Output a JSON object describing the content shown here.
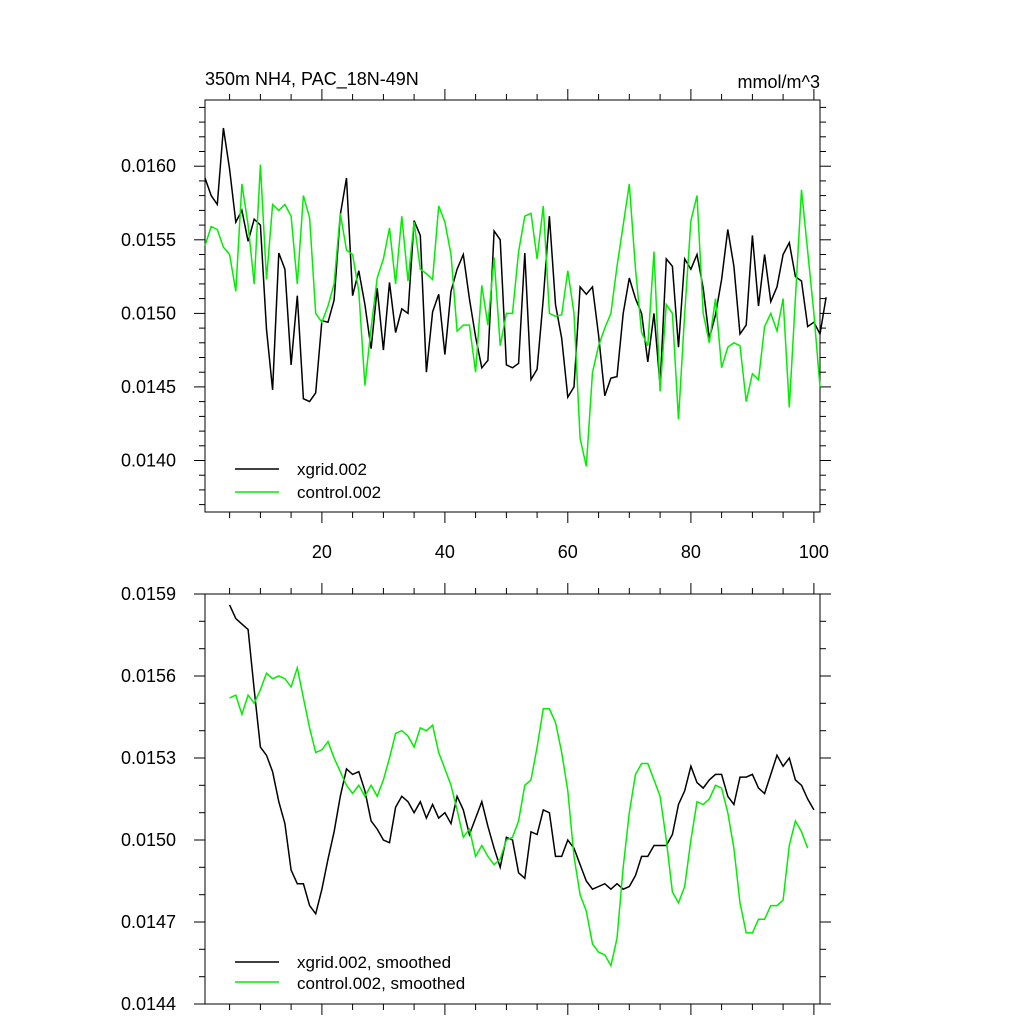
{
  "chart_data": [
    {
      "type": "line",
      "title_left": "350m NH4, PAC_18N-49N",
      "title_right": "mmol/m^3",
      "xlim": [
        1,
        101
      ],
      "ylim": [
        0.01365,
        0.01645
      ],
      "x_ticks": [
        20,
        40,
        60,
        80,
        100
      ],
      "x_tick_labels": [
        "20",
        "40",
        "60",
        "80",
        "100"
      ],
      "y_ticks": [
        0.014,
        0.0145,
        0.015,
        0.0155,
        0.016
      ],
      "y_tick_labels": [
        "0.0140",
        "0.0145",
        "0.0150",
        "0.0155",
        "0.0160"
      ],
      "legend": "bottom-left",
      "series": [
        {
          "name": "xgrid.002",
          "color": "#000000",
          "x_start": 1,
          "values": [
            0.01592,
            0.0158,
            0.01574,
            0.01626,
            0.01598,
            0.01562,
            0.0157,
            0.01549,
            0.01564,
            0.0156,
            0.01489,
            0.01448,
            0.01541,
            0.0153,
            0.01465,
            0.01512,
            0.01442,
            0.0144,
            0.01446,
            0.01495,
            0.01494,
            0.01509,
            0.01567,
            0.01592,
            0.01512,
            0.01529,
            0.01506,
            0.01476,
            0.01517,
            0.01475,
            0.01521,
            0.01487,
            0.01503,
            0.015,
            0.01563,
            0.01553,
            0.0146,
            0.01501,
            0.01513,
            0.01472,
            0.01515,
            0.0153,
            0.0154,
            0.0151,
            0.01484,
            0.01463,
            0.01468,
            0.01556,
            0.0155,
            0.01465,
            0.01463,
            0.01466,
            0.01541,
            0.01455,
            0.01462,
            0.0151,
            0.01566,
            0.01506,
            0.01483,
            0.01443,
            0.0145,
            0.01518,
            0.01513,
            0.01518,
            0.01485,
            0.01444,
            0.01456,
            0.01457,
            0.015,
            0.01524,
            0.0151,
            0.015,
            0.01467,
            0.015,
            0.01451,
            0.01537,
            0.01532,
            0.01477,
            0.01537,
            0.0153,
            0.0154,
            0.01517,
            0.01483,
            0.01499,
            0.01523,
            0.01557,
            0.01532,
            0.01486,
            0.01492,
            0.01553,
            0.01505,
            0.0154,
            0.01508,
            0.01518,
            0.0154,
            0.01548,
            0.01525,
            0.01522,
            0.01491,
            0.01494,
            0.01486,
            0.01511
          ]
        },
        {
          "name": "control.002",
          "color": "#00ee00",
          "x_start": 1,
          "values": [
            0.01546,
            0.01559,
            0.01557,
            0.01545,
            0.0154,
            0.01515,
            0.01588,
            0.0156,
            0.0152,
            0.01601,
            0.01523,
            0.01574,
            0.0157,
            0.01574,
            0.01566,
            0.0152,
            0.0158,
            0.01565,
            0.015,
            0.01494,
            0.01505,
            0.0152,
            0.01568,
            0.01543,
            0.0154,
            0.01515,
            0.01451,
            0.0149,
            0.01524,
            0.01537,
            0.01558,
            0.0152,
            0.01566,
            0.01522,
            0.01562,
            0.0153,
            0.01527,
            0.01523,
            0.01573,
            0.01562,
            0.0154,
            0.01488,
            0.01492,
            0.01492,
            0.0146,
            0.01519,
            0.01492,
            0.01538,
            0.01478,
            0.015,
            0.015,
            0.01542,
            0.01566,
            0.01568,
            0.01537,
            0.01573,
            0.015,
            0.01498,
            0.01499,
            0.01529,
            0.015,
            0.01415,
            0.01396,
            0.0146,
            0.01478,
            0.0149,
            0.015,
            0.01532,
            0.0156,
            0.01588,
            0.0153,
            0.01487,
            0.01478,
            0.01542,
            0.01447,
            0.01506,
            0.015,
            0.01428,
            0.015,
            0.01563,
            0.0158,
            0.015,
            0.0148,
            0.0151,
            0.01463,
            0.01477,
            0.0148,
            0.01478,
            0.0144,
            0.01459,
            0.01455,
            0.01491,
            0.015,
            0.01488,
            0.0151,
            0.01436,
            0.0151,
            0.01584,
            0.01542,
            0.015,
            0.0145
          ]
        }
      ]
    },
    {
      "type": "line",
      "xlim": [
        1,
        101
      ],
      "ylim": [
        0.0144,
        0.0159
      ],
      "x_ticks": [
        20,
        40,
        60,
        80,
        100
      ],
      "y_ticks": [
        0.0144,
        0.0147,
        0.015,
        0.0153,
        0.0156,
        0.0159
      ],
      "y_tick_labels": [
        "0.0144",
        "0.0147",
        "0.0150",
        "0.0153",
        "0.0156",
        "0.0159"
      ],
      "legend": "bottom-left",
      "series": [
        {
          "name": "xgrid.002, smoothed",
          "color": "#000000",
          "x_start": 5,
          "values": [
            0.01586,
            0.01581,
            0.01579,
            0.01577,
            0.01555,
            0.01534,
            0.01531,
            0.01525,
            0.01514,
            0.01506,
            0.01489,
            0.01484,
            0.01484,
            0.01476,
            0.01473,
            0.01482,
            0.01493,
            0.01503,
            0.01516,
            0.01526,
            0.01524,
            0.01525,
            0.01518,
            0.01507,
            0.01504,
            0.015,
            0.01499,
            0.01512,
            0.01516,
            0.01514,
            0.0151,
            0.01514,
            0.01508,
            0.01513,
            0.01508,
            0.0151,
            0.01506,
            0.01516,
            0.01511,
            0.01502,
            0.01508,
            0.01514,
            0.01505,
            0.01497,
            0.0149,
            0.01501,
            0.015,
            0.01488,
            0.01486,
            0.01503,
            0.01502,
            0.01511,
            0.0151,
            0.01494,
            0.01494,
            0.015,
            0.01497,
            0.01491,
            0.01485,
            0.01482,
            0.01483,
            0.01484,
            0.01482,
            0.01484,
            0.01482,
            0.01483,
            0.01487,
            0.01494,
            0.01494,
            0.01498,
            0.01498,
            0.01498,
            0.01502,
            0.01513,
            0.01518,
            0.01527,
            0.01521,
            0.01519,
            0.01522,
            0.01524,
            0.01524,
            0.01516,
            0.01513,
            0.01523,
            0.01523,
            0.01524,
            0.01519,
            0.01517,
            0.01524,
            0.01531,
            0.01527,
            0.0153,
            0.01522,
            0.0152,
            0.01515,
            0.01511
          ]
        },
        {
          "name": "control.002, smoothed",
          "color": "#00ee00",
          "x_start": 5,
          "values": [
            0.01552,
            0.01553,
            0.01546,
            0.01553,
            0.0155,
            0.01555,
            0.01561,
            0.01559,
            0.0156,
            0.01559,
            0.01556,
            0.01563,
            0.01552,
            0.01541,
            0.01532,
            0.01533,
            0.01536,
            0.0153,
            0.01525,
            0.0152,
            0.01517,
            0.0152,
            0.01516,
            0.0152,
            0.01516,
            0.01522,
            0.0153,
            0.01539,
            0.0154,
            0.01538,
            0.01534,
            0.01541,
            0.0154,
            0.01542,
            0.01532,
            0.01526,
            0.0152,
            0.01511,
            0.01501,
            0.01504,
            0.01494,
            0.01498,
            0.01494,
            0.01491,
            0.01493,
            0.015,
            0.01501,
            0.01507,
            0.0152,
            0.01522,
            0.01534,
            0.01548,
            0.01548,
            0.01543,
            0.01532,
            0.01518,
            0.01494,
            0.0148,
            0.01474,
            0.01462,
            0.01459,
            0.01458,
            0.01454,
            0.01464,
            0.0149,
            0.0151,
            0.01524,
            0.01528,
            0.01528,
            0.01522,
            0.01516,
            0.015,
            0.01481,
            0.01477,
            0.01483,
            0.015,
            0.01514,
            0.01513,
            0.01515,
            0.0152,
            0.01519,
            0.0151,
            0.01497,
            0.01477,
            0.01466,
            0.01466,
            0.01471,
            0.01471,
            0.01476,
            0.01476,
            0.01478,
            0.01498,
            0.01507,
            0.01503,
            0.01497
          ]
        }
      ]
    }
  ]
}
